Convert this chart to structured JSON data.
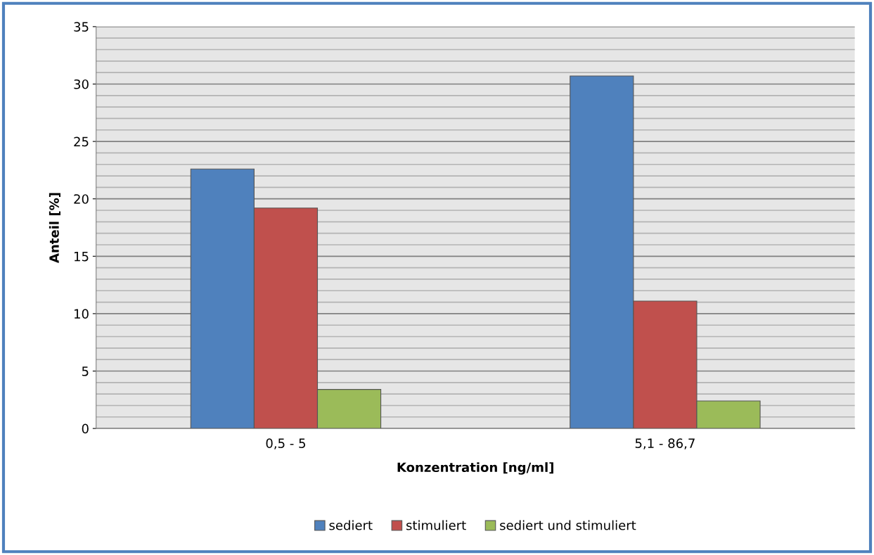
{
  "chart_data": {
    "type": "bar",
    "xlabel": "Konzentration [ng/ml]",
    "ylabel": "Anteil [%]",
    "categories": [
      "0,5 - 5",
      "5,1 - 86,7"
    ],
    "series": [
      {
        "name": "sediert",
        "color": "#4f81bd",
        "values": [
          22.6,
          30.7
        ]
      },
      {
        "name": "stimuliert",
        "color": "#c0504d",
        "values": [
          19.2,
          11.1
        ]
      },
      {
        "name": "sediert und stimuliert",
        "color": "#9bbb59",
        "values": [
          3.4,
          2.4
        ]
      }
    ],
    "ylim": [
      0,
      35
    ],
    "yticks": [
      0,
      5,
      10,
      15,
      20,
      25,
      30,
      35
    ],
    "grid": "y",
    "legend": "bottom"
  }
}
